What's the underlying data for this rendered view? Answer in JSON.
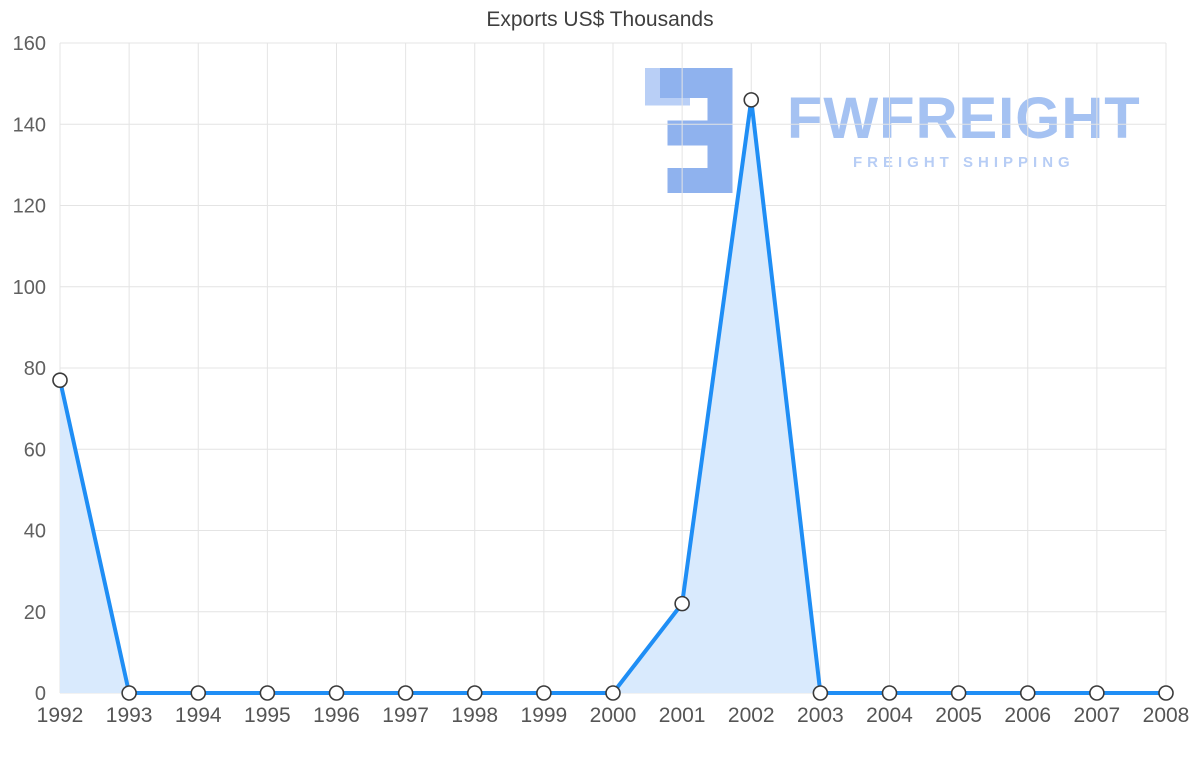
{
  "chart_data": {
    "type": "line",
    "title": "Exports US$ Thousands",
    "categories": [
      "1992",
      "1993",
      "1994",
      "1995",
      "1996",
      "1997",
      "1998",
      "1999",
      "2000",
      "2001",
      "2002",
      "2003",
      "2004",
      "2005",
      "2006",
      "2007",
      "2008"
    ],
    "values": [
      77,
      0,
      0,
      0,
      0,
      0,
      0,
      0,
      0,
      22,
      146,
      0,
      0,
      0,
      0,
      0,
      0
    ],
    "xlabel": "",
    "ylabel": "",
    "ylim": [
      0,
      160
    ],
    "ytick_step": 20,
    "grid": true,
    "legend": "none",
    "line_color": "#1f8ef5",
    "fill_color": "#d9eafd",
    "marker_fill": "#ffffff",
    "marker_stroke": "#3a3a3a",
    "grid_color": "#e4e4e4"
  },
  "watermark": {
    "brand": "FWFREIGHT",
    "tagline": "FREIGHT SHIPPING",
    "logo_color_main": "#8fb2ee",
    "logo_color_light": "#b9cff6"
  }
}
